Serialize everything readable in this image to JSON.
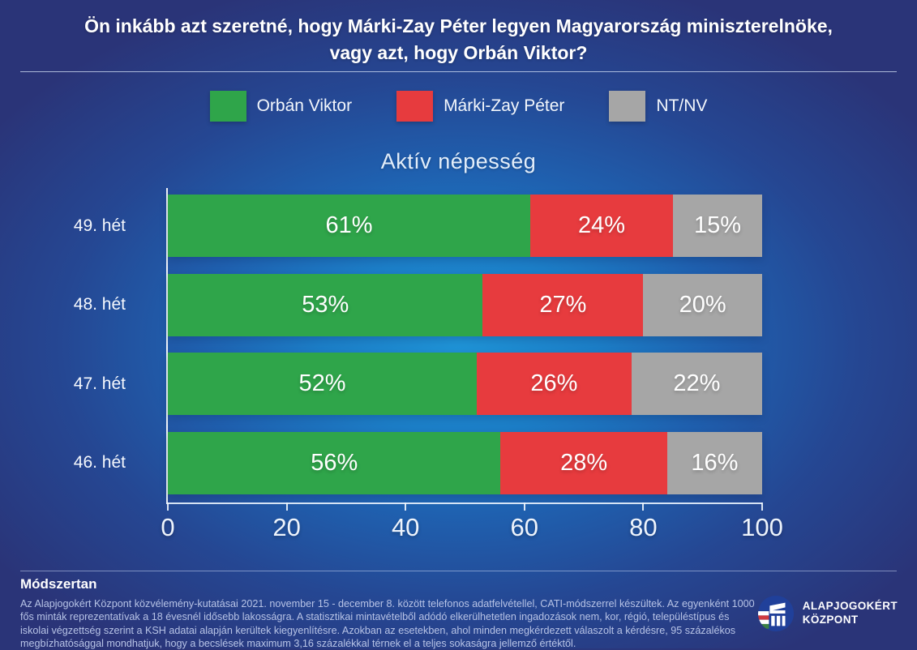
{
  "header": {
    "title_line1": "Ön inkább azt szeretné, hogy Márki-Zay Péter legyen Magyarország miniszterelnöke,",
    "title_line2": "vagy azt, hogy Orbán Viktor?"
  },
  "chart_data": {
    "type": "bar",
    "orientation": "horizontal",
    "stacked": true,
    "title": "Aktív népesség",
    "categories": [
      "49. hét",
      "48. hét",
      "47. hét",
      "46. hét"
    ],
    "series": [
      {
        "name": "Orbán Viktor",
        "color": "#2fa54a",
        "values": [
          61,
          53,
          52,
          56
        ]
      },
      {
        "name": "Márki-Zay Péter",
        "color": "#e73b3e",
        "values": [
          24,
          27,
          26,
          28
        ]
      },
      {
        "name": "NT/NV",
        "color": "#a6a6a6",
        "values": [
          15,
          20,
          22,
          16
        ]
      }
    ],
    "value_suffix": "%",
    "x_ticks": [
      "0",
      "20",
      "40",
      "60",
      "80",
      "100"
    ],
    "xlim": [
      0,
      100
    ],
    "grid": false,
    "legend_position": "top"
  },
  "footer": {
    "heading": "Módszertan",
    "body": "Az Alapjogokért Központ közvélemény-kutatásai 2021. november 15 - december 8. között telefonos adatfelvétellel, CATI-módszerrel készültek. Az egyenként 1000 fős minták reprezentatívak a 18 évesnél idősebb lakosságra. A statisztikai mintavételből adódó elkerülhetetlen ingadozások nem, kor, régió, településtípus és iskolai végzettség szerint a KSH adatai alapján kerültek kiegyenlítésre. Azokban az esetekben, ahol minden megkérdezett válaszolt a kérdésre, 95 százalékos megbízhatósággal mondhatjuk, hogy a becslések maximum 3,16 százalékkal térnek el a teljes sokaságra jellemző értéktől.",
    "logo_line1": "ALAPJOGOKÉRT",
    "logo_line2": "KÖZPONT"
  },
  "colors": {
    "background_center": "#1f93d6",
    "background_edge": "#2a3478",
    "bar_green": "#2fa54a",
    "bar_red": "#e73b3e",
    "bar_gray": "#a6a6a6",
    "text_primary": "#ffffff",
    "text_muted": "#b7c3e6"
  }
}
